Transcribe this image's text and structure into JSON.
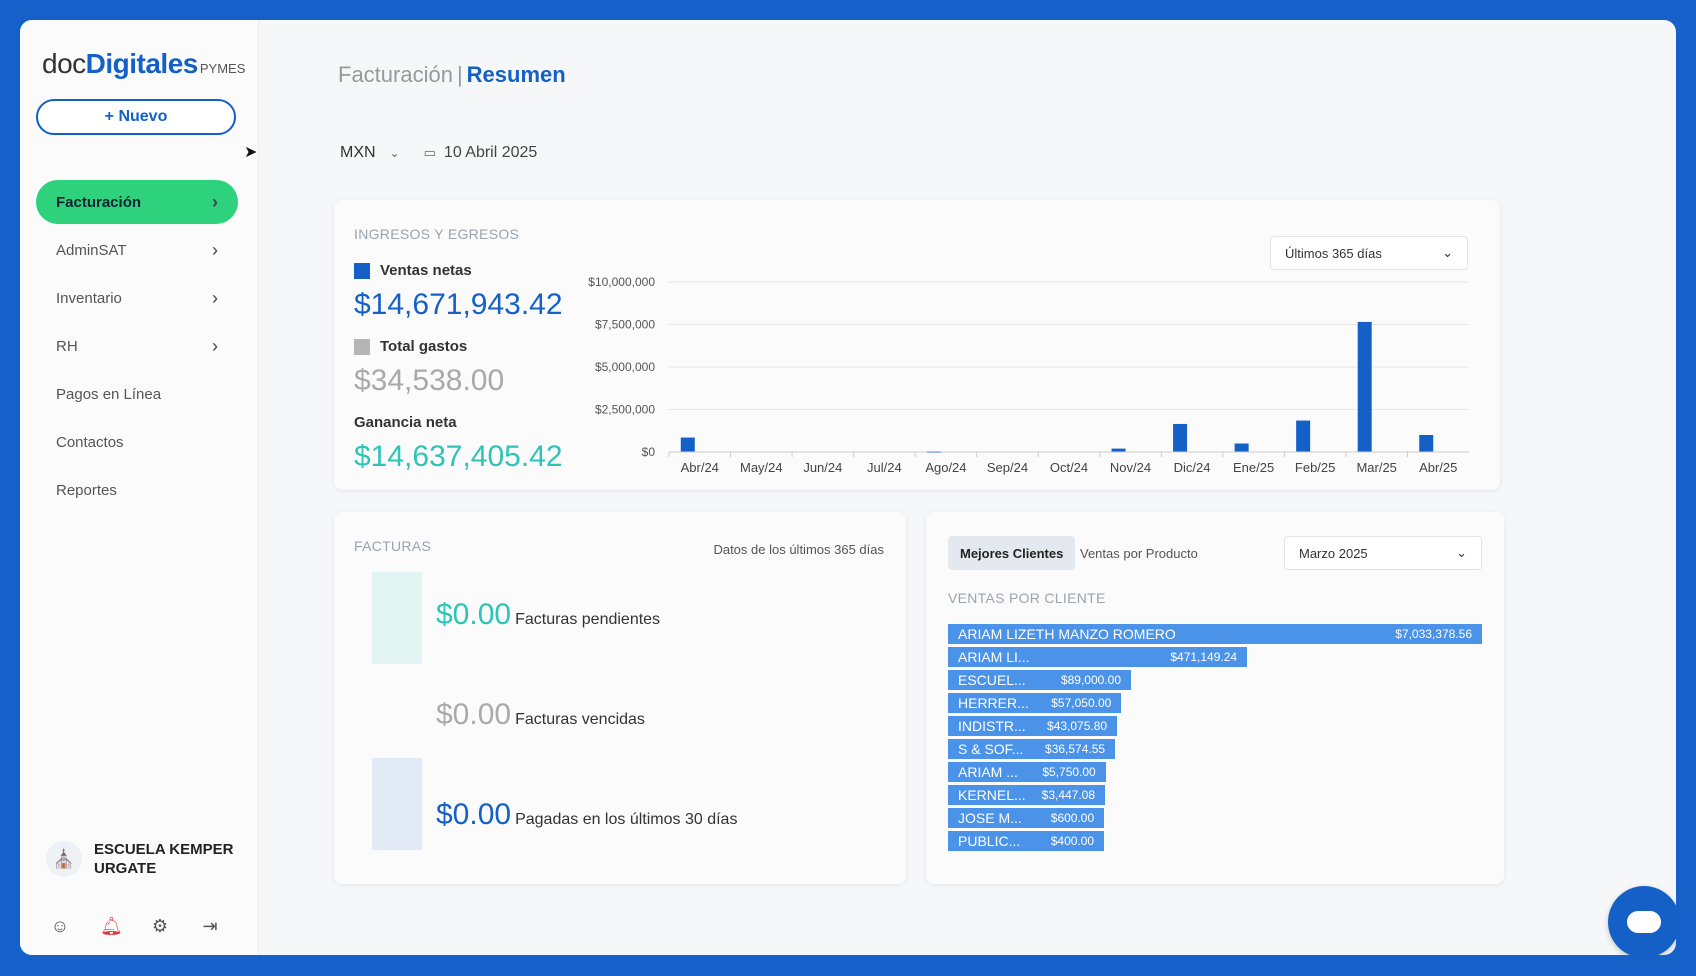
{
  "brand": {
    "doc": "doc",
    "digitales": "Digitales",
    "pymes": "PYMES"
  },
  "sidebar": {
    "new_button": "+ Nuevo",
    "items": [
      {
        "label": "Facturación",
        "has_chevron": true,
        "active": true
      },
      {
        "label": "AdminSAT",
        "has_chevron": true,
        "active": false
      },
      {
        "label": "Inventario",
        "has_chevron": true,
        "active": false
      },
      {
        "label": "RH",
        "has_chevron": true,
        "active": false
      },
      {
        "label": "Pagos en Línea",
        "has_chevron": false,
        "active": false
      },
      {
        "label": "Contactos",
        "has_chevron": false,
        "active": false
      },
      {
        "label": "Reportes",
        "has_chevron": false,
        "active": false
      }
    ],
    "company": "ESCUELA KEMPER URGATE",
    "bottom_icons": [
      "user-icon",
      "bell-icon",
      "gear-icon",
      "logout-icon"
    ]
  },
  "header": {
    "section": "Facturación",
    "separator": "|",
    "page": "Resumen",
    "currency": "MXN",
    "date": "10 Abril 2025"
  },
  "ingresos": {
    "title": "INGRESOS Y EGRESOS",
    "range": "Últimos 365 días",
    "ventas_label": "Ventas netas",
    "ventas_value": "$14,671,943.42",
    "gastos_label": "Total gastos",
    "gastos_value": "$34,538.00",
    "ganancia_label": "Ganancia neta",
    "ganancia_value": "$14,637,405.42"
  },
  "chart_data": {
    "type": "bar",
    "categories": [
      "Abr/24",
      "May/24",
      "Jun/24",
      "Jul/24",
      "Ago/24",
      "Sep/24",
      "Oct/24",
      "Nov/24",
      "Dic/24",
      "Ene/25",
      "Feb/25",
      "Mar/25",
      "Abr/25"
    ],
    "series": [
      {
        "name": "Ventas netas",
        "color": "#1560c7",
        "values": [
          850000,
          0,
          0,
          0,
          40000,
          0,
          0,
          200000,
          1650000,
          500000,
          1850000,
          7650000,
          1000000
        ]
      }
    ],
    "yticks": [
      0,
      2500000,
      5000000,
      7500000,
      10000000
    ],
    "ytick_labels": [
      "$0",
      "$2,500,000",
      "$5,000,000",
      "$7,500,000",
      "$10,000,000"
    ],
    "ylim": [
      0,
      10000000
    ],
    "grid": true
  },
  "facturas": {
    "title": "FACTURAS",
    "note": "Datos de los últimos 365 días",
    "rows": [
      {
        "amount": "$0.00",
        "label": "Facturas pendientes"
      },
      {
        "amount": "$0.00",
        "label": "Facturas vencidas"
      },
      {
        "amount": "$0.00",
        "label": "Pagadas en los últimos 30 días"
      }
    ]
  },
  "clientes": {
    "tab_active": "Mejores Clientes",
    "tab_other": "Ventas por Producto",
    "month": "Marzo 2025",
    "title": "VENTAS POR CLIENTE",
    "rows": [
      {
        "name": "ARIAM LIZETH MANZO ROMERO",
        "amount": "$7,033,378.56",
        "value": 7033378.56
      },
      {
        "name": "ARIAM LI...",
        "amount": "$471,149.24",
        "value": 471149.24
      },
      {
        "name": "ESCUEL...",
        "amount": "$89,000.00",
        "value": 89000
      },
      {
        "name": "HERRER...",
        "amount": "$57,050.00",
        "value": 57050
      },
      {
        "name": "INDISTR...",
        "amount": "$43,075.80",
        "value": 43075.8
      },
      {
        "name": "S & SOF...",
        "amount": "$36,574.55",
        "value": 36574.55
      },
      {
        "name": "ARIAM ...",
        "amount": "$5,750.00",
        "value": 5750
      },
      {
        "name": "KERNEL...",
        "amount": "$3,447.08",
        "value": 3447.08
      },
      {
        "name": "JOSE M...",
        "amount": "$600.00",
        "value": 600
      },
      {
        "name": "PUBLIC...",
        "amount": "$400.00",
        "value": 400
      }
    ]
  },
  "colors": {
    "primary": "#1560c7",
    "active_nav": "#2ed17c",
    "ventas": "#1560c7",
    "ganancia": "#2ec4b6",
    "gastos": "#9e9e9e",
    "client_bar": "#4a93e8"
  }
}
